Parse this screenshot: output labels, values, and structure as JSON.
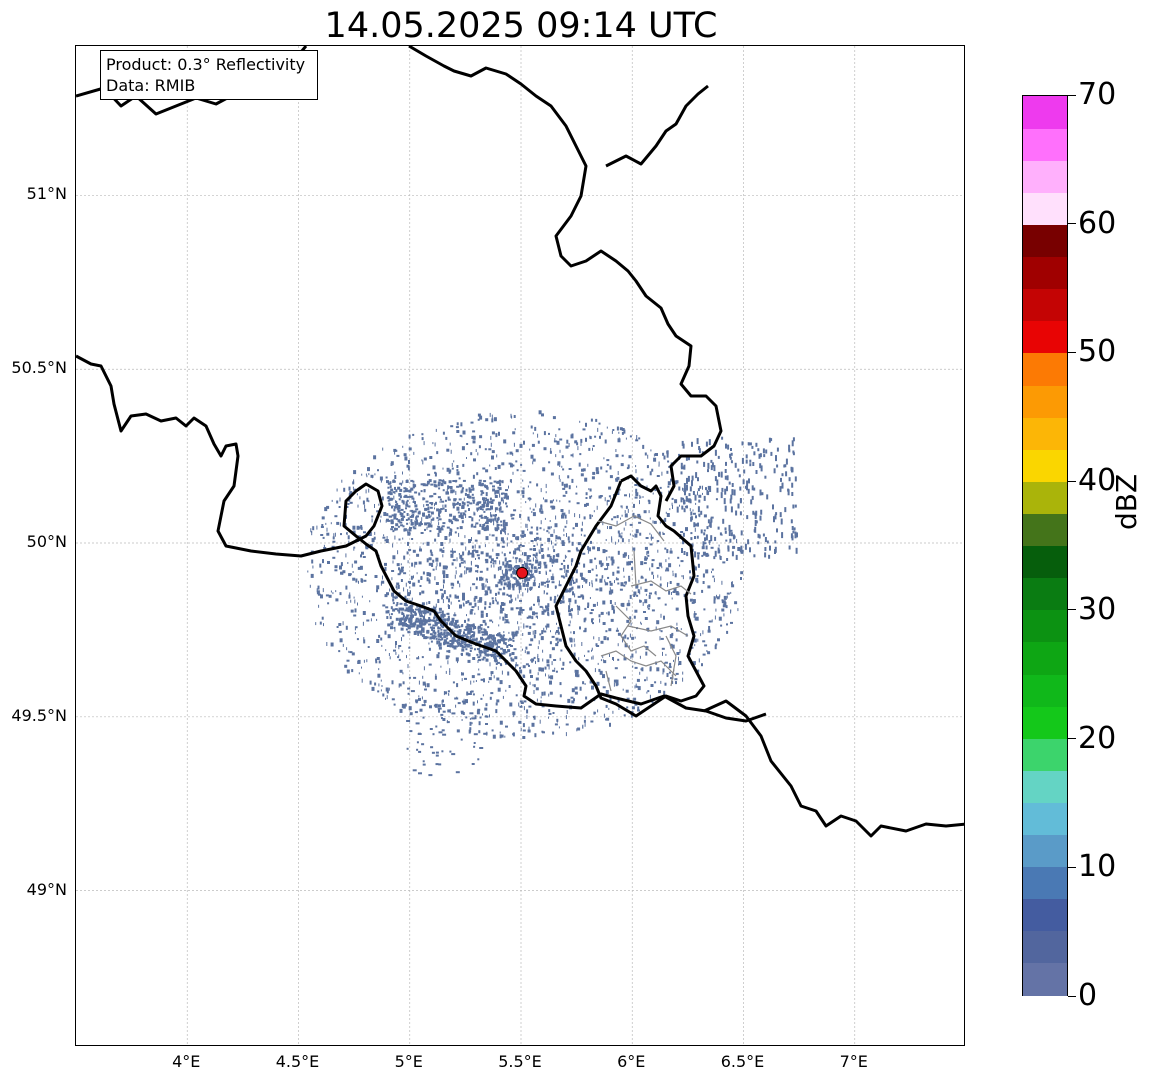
{
  "title": "14.05.2025 09:14 UTC",
  "info": {
    "product": "Product: 0.3° Reflectivity",
    "data": "Data: RMIB"
  },
  "map": {
    "lon_range": [
      3.5,
      7.5
    ],
    "lat_range": [
      48.55,
      51.43
    ],
    "lat_ticks": [
      {
        "value": 51.0,
        "label": "51°N"
      },
      {
        "value": 50.5,
        "label": "50.5°N"
      },
      {
        "value": 50.0,
        "label": "50°N"
      },
      {
        "value": 49.5,
        "label": "49.5°N"
      },
      {
        "value": 49.0,
        "label": "49°N"
      }
    ],
    "lon_ticks": [
      {
        "value": 4.0,
        "label": "4°E"
      },
      {
        "value": 4.5,
        "label": "4.5°E"
      },
      {
        "value": 5.0,
        "label": "5°E"
      },
      {
        "value": 5.5,
        "label": "5.5°E"
      },
      {
        "value": 6.0,
        "label": "6°E"
      },
      {
        "value": 6.5,
        "label": "6.5°E"
      },
      {
        "value": 7.0,
        "label": "7°E"
      }
    ],
    "gridlines": true,
    "radar_site": {
      "lon": 5.505,
      "lat": 49.914,
      "color": "#e8141c"
    },
    "echo_color": "#5b73a0"
  },
  "colorbar": {
    "unit": "dBZ",
    "min": 0,
    "max": 70,
    "step": 2.5,
    "tick_labels": [
      "0",
      "10",
      "20",
      "30",
      "40",
      "50",
      "60",
      "70"
    ],
    "colors": [
      "#6473a6",
      "#52669e",
      "#445ca0",
      "#4a79b4",
      "#5a9bc8",
      "#62bcd8",
      "#64d4c4",
      "#3cd46c",
      "#14c81a",
      "#10b81a",
      "#0ea614",
      "#0c9212",
      "#0a7c12",
      "#065e0c",
      "#44741a",
      "#aab40a",
      "#fad600",
      "#fcb606",
      "#fc9a04",
      "#fc7a04",
      "#e80404",
      "#c40404",
      "#a00000",
      "#780000",
      "#ffe0fc",
      "#ffb0fc",
      "#ff70fc",
      "#ee3aee"
    ]
  }
}
